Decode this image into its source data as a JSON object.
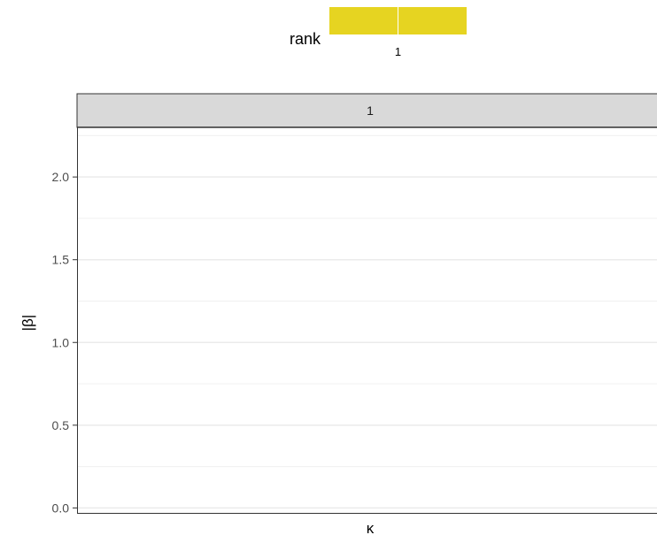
{
  "chart_data": {
    "type": "line",
    "title": "",
    "xlabel": "κ",
    "ylabel": "|β|",
    "facets": [
      "1"
    ],
    "ylim": [
      -0.03,
      2.3
    ],
    "y_ticks": [
      "0.0",
      "0.5",
      "1.0",
      "1.5",
      "2.0"
    ],
    "y_tick_values": [
      0.0,
      0.5,
      1.0,
      1.5,
      2.0
    ],
    "y_minor_values": [
      0.25,
      0.75,
      1.25,
      1.75,
      2.25
    ],
    "grid": true,
    "legend": {
      "title": "rank",
      "placement": "top",
      "type": "colorbar",
      "labels": [
        "1"
      ],
      "color": "#e6d421"
    },
    "series": []
  }
}
